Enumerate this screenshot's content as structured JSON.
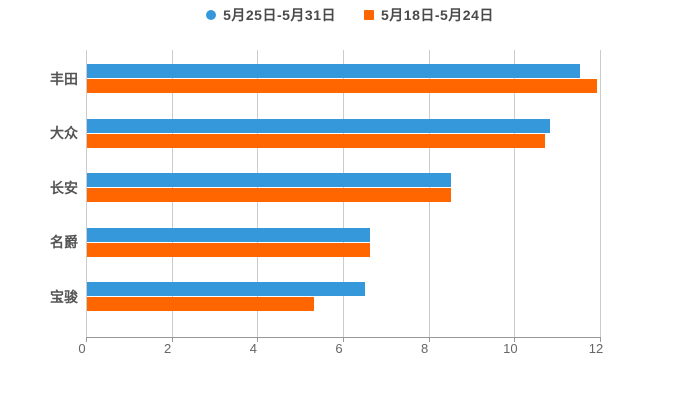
{
  "chart_data": {
    "type": "bar",
    "orientation": "horizontal",
    "title": "",
    "categories": [
      "丰田",
      "大众",
      "长安",
      "名爵",
      "宝骏"
    ],
    "series": [
      {
        "name": "5月25日-5月31日",
        "color": "#3498db",
        "marker": "circle",
        "values": [
          11.5,
          10.8,
          8.5,
          6.6,
          6.5
        ]
      },
      {
        "name": "5月18日-5月24日",
        "color": "#ff6600",
        "marker": "square",
        "values": [
          11.9,
          10.7,
          8.5,
          6.6,
          5.3
        ]
      }
    ],
    "xlim": [
      0,
      12
    ],
    "x_ticks": [
      0,
      2,
      4,
      6,
      8,
      10,
      12
    ],
    "xlabel": "",
    "ylabel": "",
    "grid": "vertical-gridlines",
    "legend_position": "top-center"
  },
  "colors": {
    "background": "#ffffff",
    "gridline": "#cccccc",
    "axis": "#999999",
    "tick_label": "#666666",
    "category_label": "#555555",
    "legend_text": "#4a4a4a"
  }
}
